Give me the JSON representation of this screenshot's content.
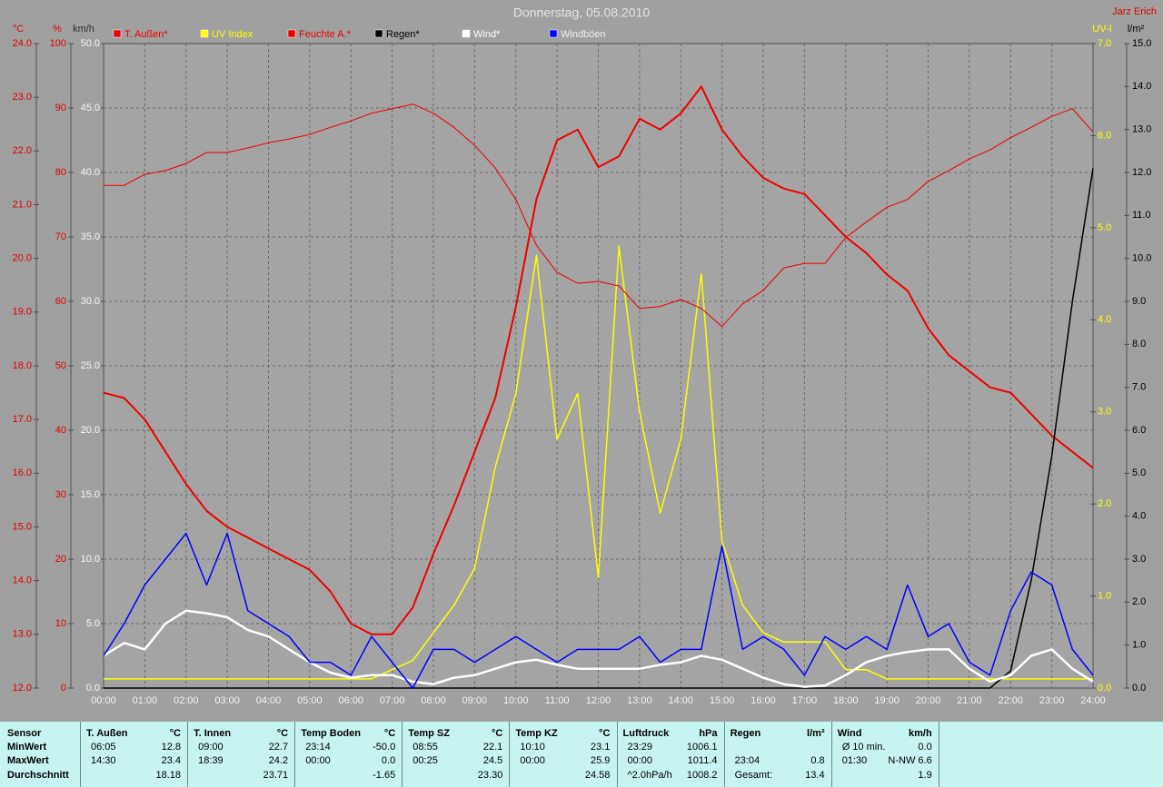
{
  "chart_data": {
    "type": "line",
    "title": "Donnerstag, 05.08.2010",
    "source": "Jarz Erich",
    "x": [
      0,
      0.5,
      1,
      1.5,
      2,
      2.5,
      3,
      3.5,
      4,
      4.5,
      5,
      5.5,
      6,
      6.5,
      7,
      7.5,
      8,
      8.5,
      9,
      9.5,
      10,
      10.5,
      11,
      11.5,
      12,
      12.5,
      13,
      13.5,
      14,
      14.5,
      15,
      15.5,
      16,
      16.5,
      17,
      17.5,
      18,
      18.5,
      19,
      19.5,
      20,
      20.5,
      21,
      21.5,
      22,
      22.5,
      23,
      23.5,
      24
    ],
    "xlim": [
      0,
      24
    ],
    "xticks": [
      {
        "value": 0,
        "label": "00:00"
      },
      {
        "value": 1,
        "label": "01:00"
      },
      {
        "value": 2,
        "label": "02:00"
      },
      {
        "value": 3,
        "label": "03:00"
      },
      {
        "value": 4,
        "label": "04:00"
      },
      {
        "value": 5,
        "label": "05:00"
      },
      {
        "value": 6,
        "label": "06:00"
      },
      {
        "value": 7,
        "label": "07:00"
      },
      {
        "value": 8,
        "label": "08:00"
      },
      {
        "value": 9,
        "label": "09:00"
      },
      {
        "value": 10,
        "label": "10:00"
      },
      {
        "value": 11,
        "label": "11:00"
      },
      {
        "value": 12,
        "label": "12:00"
      },
      {
        "value": 13,
        "label": "13:00"
      },
      {
        "value": 14,
        "label": "14:00"
      },
      {
        "value": 15,
        "label": "15:00"
      },
      {
        "value": 16,
        "label": "16:00"
      },
      {
        "value": 17,
        "label": "17:00"
      },
      {
        "value": 18,
        "label": "18:00"
      },
      {
        "value": 19,
        "label": "19:00"
      },
      {
        "value": 20,
        "label": "20:00"
      },
      {
        "value": 21,
        "label": "21:00"
      },
      {
        "value": 22,
        "label": "22:00"
      },
      {
        "value": 23,
        "label": "23:00"
      },
      {
        "value": 24,
        "label": "24:00"
      }
    ],
    "grid": true,
    "grid_axis": 2,
    "y_axes": [
      {
        "unit": "°C",
        "side": "left",
        "color": "#e00000",
        "ylim": [
          12,
          24
        ],
        "yticks": [
          {
            "value": 12,
            "label": "12.0"
          },
          {
            "value": 13,
            "label": "13.0"
          },
          {
            "value": 14,
            "label": "14.0"
          },
          {
            "value": 15,
            "label": "15.0"
          },
          {
            "value": 16,
            "label": "16.0"
          },
          {
            "value": 17,
            "label": "17.0"
          },
          {
            "value": 18,
            "label": "18.0"
          },
          {
            "value": 19,
            "label": "19.0"
          },
          {
            "value": 20,
            "label": "20.0"
          },
          {
            "value": 21,
            "label": "21.0"
          },
          {
            "value": 22,
            "label": "22.0"
          },
          {
            "value": 23,
            "label": "23.0"
          },
          {
            "value": 24,
            "label": "24.0"
          }
        ]
      },
      {
        "unit": "%",
        "side": "left",
        "color": "#e00000",
        "ylim": [
          0,
          100
        ],
        "yticks": [
          0,
          10,
          20,
          30,
          40,
          50,
          60,
          70,
          80,
          90,
          100
        ]
      },
      {
        "unit": "km/h",
        "side": "left",
        "color": "#f4f4f4",
        "ylim": [
          0,
          50
        ],
        "yticks": [
          {
            "value": 0,
            "label": "0.0"
          },
          {
            "value": 5,
            "label": "5.0"
          },
          {
            "value": 10,
            "label": "10.0"
          },
          {
            "value": 15,
            "label": "15.0"
          },
          {
            "value": 20,
            "label": "20.0"
          },
          {
            "value": 25,
            "label": "25.0"
          },
          {
            "value": 30,
            "label": "30.0"
          },
          {
            "value": 35,
            "label": "35.0"
          },
          {
            "value": 40,
            "label": "40.0"
          },
          {
            "value": 45,
            "label": "45.0"
          },
          {
            "value": 50,
            "label": "50.0"
          }
        ]
      },
      {
        "unit": "UV-I",
        "side": "right",
        "color": "#ffff00",
        "ylim": [
          0,
          7
        ],
        "yticks": [
          {
            "value": 0,
            "label": "0.0"
          },
          {
            "value": 1,
            "label": "1.0"
          },
          {
            "value": 2,
            "label": "2.0"
          },
          {
            "value": 3,
            "label": "3.0"
          },
          {
            "value": 4,
            "label": "4.0"
          },
          {
            "value": 5,
            "label": "5.0"
          },
          {
            "value": 6,
            "label": "6.0"
          },
          {
            "value": 7,
            "label": "7.0"
          }
        ]
      },
      {
        "unit": "l/m²",
        "side": "right",
        "color": "#000000",
        "ylim": [
          0,
          15
        ],
        "yticks": [
          {
            "value": 0,
            "label": "0.0"
          },
          {
            "value": 1,
            "label": "1.0"
          },
          {
            "value": 2,
            "label": "2.0"
          },
          {
            "value": 3,
            "label": "3.0"
          },
          {
            "value": 4,
            "label": "4.0"
          },
          {
            "value": 5,
            "label": "5.0"
          },
          {
            "value": 6,
            "label": "6.0"
          },
          {
            "value": 7,
            "label": "7.0"
          },
          {
            "value": 8,
            "label": "8.0"
          },
          {
            "value": 9,
            "label": "9.0"
          },
          {
            "value": 10,
            "label": "10.0"
          },
          {
            "value": 11,
            "label": "11.0"
          },
          {
            "value": 12,
            "label": "12.0"
          },
          {
            "value": 13,
            "label": "13.0"
          },
          {
            "value": 14,
            "label": "14.0"
          },
          {
            "value": 15,
            "label": "15.0"
          }
        ]
      }
    ],
    "series": [
      {
        "name": "T. Außen*",
        "color": "#ee0000",
        "axis": 0,
        "line_width": 2,
        "values": [
          17.5,
          17.4,
          17.0,
          16.4,
          15.8,
          15.3,
          15.0,
          14.8,
          14.6,
          14.4,
          14.2,
          13.8,
          13.2,
          13.0,
          13.0,
          13.5,
          14.5,
          15.4,
          16.4,
          17.4,
          19.1,
          21.1,
          22.2,
          22.4,
          21.7,
          21.9,
          22.6,
          22.4,
          22.7,
          23.2,
          22.4,
          21.9,
          21.5,
          21.3,
          21.2,
          20.8,
          20.4,
          20.1,
          19.7,
          19.4,
          18.7,
          18.2,
          17.9,
          17.6,
          17.5,
          17.1,
          16.7,
          16.4,
          16.1
        ]
      },
      {
        "name": "UV Index",
        "color": "#ffff00",
        "axis": 3,
        "line_width": 1.5,
        "values": [
          0.1,
          0.1,
          0.1,
          0.1,
          0.1,
          0.1,
          0.1,
          0.1,
          0.1,
          0.1,
          0.1,
          0.1,
          0.1,
          0.1,
          0.2,
          0.3,
          0.6,
          0.9,
          1.3,
          2.4,
          3.2,
          4.7,
          2.7,
          3.2,
          1.2,
          4.8,
          3.0,
          1.9,
          2.7,
          4.5,
          1.6,
          0.9,
          0.6,
          0.5,
          0.5,
          0.5,
          0.2,
          0.2,
          0.1,
          0.1,
          0.1,
          0.1,
          0.1,
          0.1,
          0.1,
          0.1,
          0.1,
          0.1,
          0.1
        ]
      },
      {
        "name": "Feuchte A.*",
        "color": "#ee0000",
        "axis": 1,
        "line_width": 1,
        "values": [
          78,
          78,
          79.7,
          80.3,
          81.4,
          83.1,
          83.1,
          83.8,
          84.6,
          85.2,
          85.9,
          87,
          88,
          89.2,
          89.9,
          90.6,
          89.2,
          87,
          84.2,
          80.7,
          75.8,
          68.7,
          64.5,
          62.8,
          63.1,
          62.4,
          58.9,
          59.2,
          60.3,
          58.9,
          56.1,
          59.6,
          61.7,
          65.2,
          65.9,
          65.9,
          69.9,
          72.3,
          74.6,
          75.8,
          78.6,
          80.3,
          82.1,
          83.5,
          85.4,
          87,
          88.7,
          89.9,
          86.3
        ]
      },
      {
        "name": "Regen*",
        "color": "#000000",
        "axis": 4,
        "line_width": 1.5,
        "values": [
          0,
          0,
          0,
          0,
          0,
          0,
          0,
          0,
          0,
          0,
          0,
          0,
          0,
          0,
          0,
          0,
          0,
          0,
          0,
          0,
          0,
          0,
          0,
          0,
          0,
          0,
          0,
          0,
          0,
          0,
          0,
          0,
          0,
          0,
          0,
          0,
          0,
          0,
          0,
          0,
          0,
          0,
          0,
          0,
          0.4,
          2.5,
          5.4,
          9.0,
          12.1
        ]
      },
      {
        "name": "Wind*",
        "color": "#ffffff",
        "axis": 2,
        "line_width": 2.5,
        "values": [
          2.5,
          3.5,
          3,
          5,
          6,
          5.8,
          5.5,
          4.5,
          4,
          3,
          2,
          1.2,
          0.8,
          1,
          1,
          0.5,
          0.3,
          0.8,
          1,
          1.5,
          2,
          2.2,
          1.8,
          1.5,
          1.5,
          1.5,
          1.5,
          1.8,
          2,
          2.5,
          2.2,
          1.5,
          0.8,
          0.3,
          0.1,
          0.2,
          1,
          2,
          2.5,
          2.8,
          3,
          3,
          1.5,
          0.5,
          1,
          2.5,
          3,
          1.5,
          0.5
        ]
      },
      {
        "name": "Windböen",
        "color": "#0000ff",
        "axis": 2,
        "line_width": 1.5,
        "values": [
          2.5,
          5,
          8,
          10,
          12,
          8,
          12,
          6,
          5,
          4,
          2,
          2,
          1,
          4,
          2,
          0,
          3,
          3,
          2,
          3,
          4,
          3,
          2,
          3,
          3,
          3,
          4,
          2,
          3,
          3,
          11,
          3,
          4,
          3,
          1,
          4,
          3,
          4,
          3,
          8,
          4,
          5,
          2,
          1,
          6,
          9,
          8,
          3,
          1
        ]
      }
    ]
  },
  "stats": {
    "row_labels": [
      "Sensor",
      "MinWert",
      "MaxWert",
      "Durchschnitt"
    ],
    "columns": [
      {
        "name": "T. Außen",
        "unit": "°C",
        "rows": [
          {
            "time": "06:05",
            "value": "12.8"
          },
          {
            "time": "14:30",
            "value": "23.4"
          },
          {
            "value": "18.18"
          }
        ]
      },
      {
        "name": "T. Innen",
        "unit": "°C",
        "rows": [
          {
            "time": "09:00",
            "value": "22.7"
          },
          {
            "time": "18:39",
            "value": "24.2"
          },
          {
            "value": "23.71"
          }
        ]
      },
      {
        "name": "Temp Boden",
        "unit": "°C",
        "rows": [
          {
            "time": "23:14",
            "value": "-50.0"
          },
          {
            "time": "00:00",
            "value": "0.0"
          },
          {
            "value": "-1.65"
          }
        ]
      },
      {
        "name": "Temp SZ",
        "unit": "°C",
        "rows": [
          {
            "time": "08:55",
            "value": "22.1"
          },
          {
            "time": "00:25",
            "value": "24.5"
          },
          {
            "value": "23.30"
          }
        ]
      },
      {
        "name": "Temp KZ",
        "unit": "°C",
        "rows": [
          {
            "time": "10:10",
            "value": "23.1"
          },
          {
            "time": "00:00",
            "value": "25.9"
          },
          {
            "value": "24.58"
          }
        ]
      },
      {
        "name": "Luftdruck",
        "unit": "hPa",
        "rows": [
          {
            "time": "23:29",
            "value": "1006.1"
          },
          {
            "time": "00:00",
            "value": "1011.4"
          },
          {
            "time": "^2.0hPa/h",
            "value": "1008.2"
          }
        ]
      },
      {
        "name": "Regen",
        "unit": "l/m²",
        "rows": [
          null,
          {
            "time": "23:04",
            "value": "0.8"
          },
          {
            "time": "Gesamt:",
            "value": "13.4"
          }
        ]
      },
      {
        "name": "Wind",
        "unit": "km/h",
        "rows": [
          {
            "time": "Ø 10 min.",
            "value": "0.0"
          },
          {
            "time": "01:30",
            "value": "N-NW 6.6"
          },
          {
            "value": "1.9"
          }
        ]
      }
    ]
  }
}
